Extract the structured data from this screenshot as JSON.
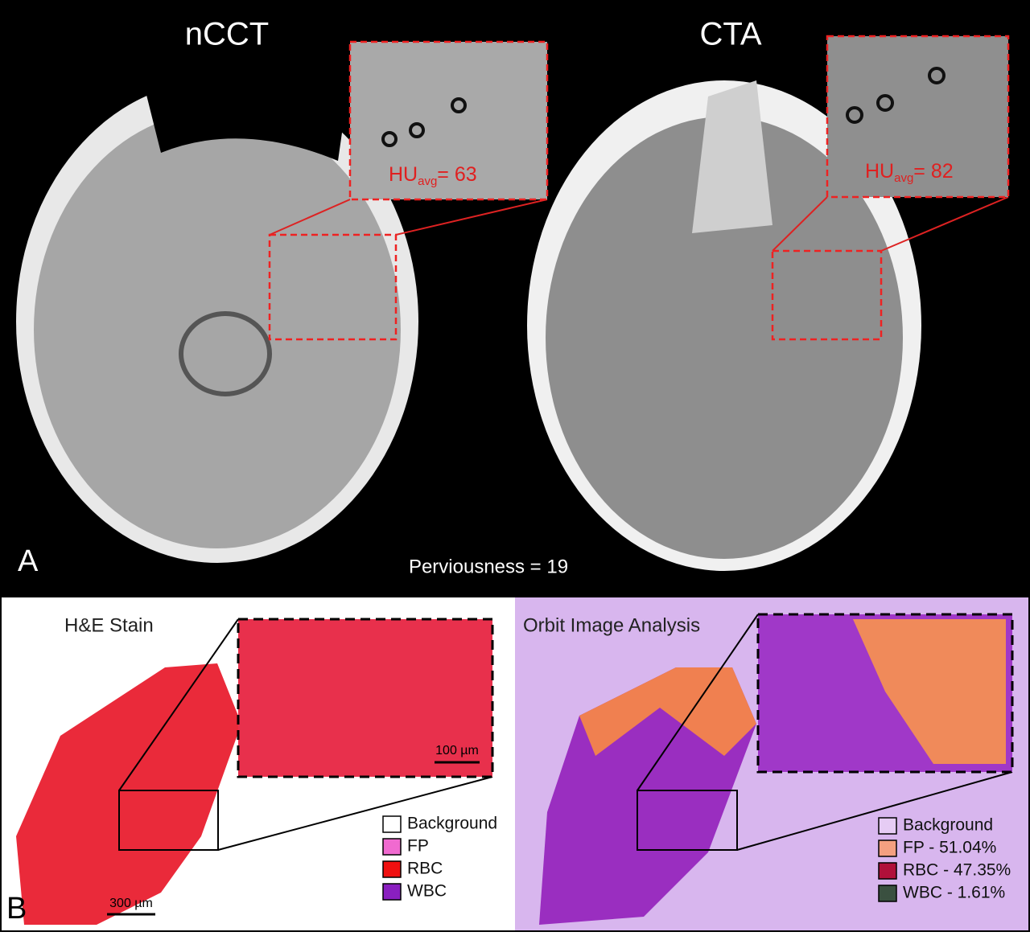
{
  "panel_a": {
    "label": "A",
    "left": {
      "title": "nCCT",
      "hu_label": "HU",
      "hu_sub": "avg",
      "hu_value": "= 63"
    },
    "right": {
      "title": "CTA",
      "hu_label": "HU",
      "hu_sub": "avg",
      "hu_value": "= 82"
    },
    "perviousness": "Perviousness = 19"
  },
  "panel_b": {
    "label": "B",
    "left": {
      "title": "H&E Stain",
      "scale_inset": "100 µm",
      "scale_main": "300 µm",
      "legend": [
        {
          "label": "Background",
          "color": "#ffffff"
        },
        {
          "label": "FP",
          "color": "#f06ad0"
        },
        {
          "label": "RBC",
          "color": "#f01010"
        },
        {
          "label": "WBC",
          "color": "#8a1fc0"
        }
      ]
    },
    "right": {
      "title": "Orbit Image Analysis",
      "legend": [
        {
          "label": "Background",
          "color": "#e6ccf4"
        },
        {
          "label": "FP - 51.04%",
          "color": "#f4a080"
        },
        {
          "label": "RBC - 47.35%",
          "color": "#b0103a"
        },
        {
          "label": "WBC - 1.61%",
          "color": "#3a5040"
        }
      ]
    }
  }
}
